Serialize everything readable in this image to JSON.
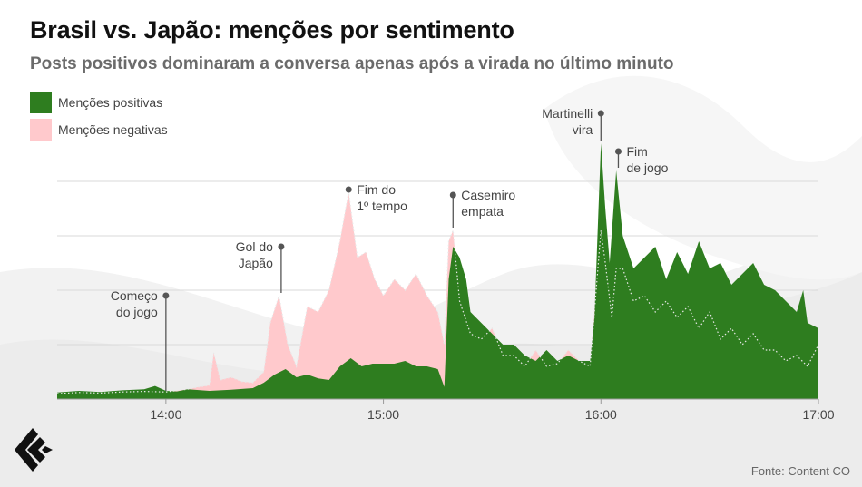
{
  "title": "Brasil vs. Japão: menções por sentimento",
  "subtitle": "Posts positivos dominaram a conversa apenas após a virada no último minuto",
  "source": "Fonte: Content CO",
  "colors": {
    "positive": "#2e7d1f",
    "negative": "#ffc9cc",
    "grid": "#d9d9d9",
    "annotation": "#555555",
    "text": "#444444"
  },
  "icons": {
    "logo": "brand-logo-icon"
  },
  "chart_data": {
    "type": "area",
    "x_unit": "hour",
    "xlim": [
      13.5,
      17.0
    ],
    "ylim": [
      0,
      50
    ],
    "xticks": [
      {
        "x": 14.0,
        "label": "14:00"
      },
      {
        "x": 15.0,
        "label": "15:00"
      },
      {
        "x": 16.0,
        "label": "16:00"
      },
      {
        "x": 17.0,
        "label": "17:00"
      }
    ],
    "yticks": [
      0,
      10,
      20,
      30,
      40
    ],
    "grid": true,
    "legend_position": "top-left",
    "series": [
      {
        "name": "Menções positivas",
        "color": "#2e7d1f",
        "points": [
          [
            13.5,
            1.2
          ],
          [
            13.6,
            1.5
          ],
          [
            13.7,
            1.3
          ],
          [
            13.8,
            1.6
          ],
          [
            13.9,
            1.8
          ],
          [
            13.95,
            2.4
          ],
          [
            14.0,
            1.5
          ],
          [
            14.05,
            1.4
          ],
          [
            14.1,
            1.8
          ],
          [
            14.2,
            1.5
          ],
          [
            14.3,
            1.7
          ],
          [
            14.4,
            2.0
          ],
          [
            14.45,
            3.0
          ],
          [
            14.5,
            4.5
          ],
          [
            14.55,
            5.5
          ],
          [
            14.6,
            4.0
          ],
          [
            14.65,
            4.5
          ],
          [
            14.7,
            3.8
          ],
          [
            14.75,
            3.5
          ],
          [
            14.8,
            6.0
          ],
          [
            14.85,
            7.5
          ],
          [
            14.9,
            6.0
          ],
          [
            14.95,
            6.5
          ],
          [
            15.0,
            6.5
          ],
          [
            15.05,
            6.5
          ],
          [
            15.1,
            7.0
          ],
          [
            15.15,
            6.0
          ],
          [
            15.2,
            6.0
          ],
          [
            15.25,
            5.5
          ],
          [
            15.28,
            2.2
          ],
          [
            15.3,
            22.0
          ],
          [
            15.32,
            28.0
          ],
          [
            15.35,
            26.0
          ],
          [
            15.38,
            22.0
          ],
          [
            15.4,
            16.0
          ],
          [
            15.45,
            14.0
          ],
          [
            15.5,
            12.0
          ],
          [
            15.55,
            10.0
          ],
          [
            15.6,
            10.0
          ],
          [
            15.65,
            8.0
          ],
          [
            15.7,
            7.0
          ],
          [
            15.75,
            9.0
          ],
          [
            15.8,
            7.0
          ],
          [
            15.85,
            8.0
          ],
          [
            15.9,
            7.0
          ],
          [
            15.95,
            7.0
          ],
          [
            15.97,
            15.0
          ],
          [
            16.0,
            47.0
          ],
          [
            16.02,
            35.0
          ],
          [
            16.04,
            25.0
          ],
          [
            16.07,
            42.0
          ],
          [
            16.1,
            30.0
          ],
          [
            16.15,
            24.0
          ],
          [
            16.2,
            26.0
          ],
          [
            16.25,
            28.0
          ],
          [
            16.3,
            22.0
          ],
          [
            16.35,
            27.0
          ],
          [
            16.4,
            23.0
          ],
          [
            16.45,
            29.0
          ],
          [
            16.5,
            24.0
          ],
          [
            16.55,
            25.0
          ],
          [
            16.6,
            21.0
          ],
          [
            16.65,
            23.0
          ],
          [
            16.7,
            25.0
          ],
          [
            16.75,
            21.0
          ],
          [
            16.8,
            20.0
          ],
          [
            16.85,
            18.0
          ],
          [
            16.9,
            16.0
          ],
          [
            16.93,
            20.0
          ],
          [
            16.95,
            14.0
          ],
          [
            17.0,
            13.0
          ]
        ]
      },
      {
        "name": "Menções negativas",
        "color": "#ffc9cc",
        "points": [
          [
            13.5,
            1.0
          ],
          [
            13.6,
            1.2
          ],
          [
            13.7,
            1.1
          ],
          [
            13.8,
            1.3
          ],
          [
            13.9,
            1.4
          ],
          [
            14.0,
            1.3
          ],
          [
            14.1,
            1.8
          ],
          [
            14.15,
            2.2
          ],
          [
            14.2,
            2.5
          ],
          [
            14.22,
            8.5
          ],
          [
            14.25,
            3.5
          ],
          [
            14.3,
            4.0
          ],
          [
            14.35,
            3.2
          ],
          [
            14.4,
            3.0
          ],
          [
            14.45,
            5.0
          ],
          [
            14.48,
            14.0
          ],
          [
            14.52,
            19.0
          ],
          [
            14.56,
            10.0
          ],
          [
            14.6,
            6.0
          ],
          [
            14.65,
            17.0
          ],
          [
            14.7,
            16.0
          ],
          [
            14.75,
            20.0
          ],
          [
            14.8,
            29.0
          ],
          [
            14.84,
            38.0
          ],
          [
            14.88,
            26.0
          ],
          [
            14.92,
            27.0
          ],
          [
            14.96,
            22.0
          ],
          [
            15.0,
            19.0
          ],
          [
            15.05,
            22.0
          ],
          [
            15.1,
            20.0
          ],
          [
            15.15,
            23.0
          ],
          [
            15.2,
            19.0
          ],
          [
            15.25,
            16.0
          ],
          [
            15.28,
            10.0
          ],
          [
            15.3,
            29.0
          ],
          [
            15.32,
            31.0
          ],
          [
            15.35,
            18.0
          ],
          [
            15.4,
            12.0
          ],
          [
            15.45,
            11.0
          ],
          [
            15.5,
            13.0
          ],
          [
            15.55,
            8.0
          ],
          [
            15.6,
            8.0
          ],
          [
            15.65,
            6.0
          ],
          [
            15.7,
            9.0
          ],
          [
            15.75,
            6.0
          ],
          [
            15.8,
            6.5
          ],
          [
            15.85,
            9.0
          ],
          [
            15.9,
            7.0
          ],
          [
            15.95,
            6.0
          ],
          [
            16.0,
            31.0
          ],
          [
            16.02,
            25.0
          ],
          [
            16.05,
            15.0
          ],
          [
            16.07,
            24.0
          ],
          [
            16.1,
            24.0
          ],
          [
            16.15,
            18.0
          ],
          [
            16.2,
            19.0
          ],
          [
            16.25,
            16.0
          ],
          [
            16.3,
            18.0
          ],
          [
            16.35,
            15.0
          ],
          [
            16.4,
            17.0
          ],
          [
            16.45,
            13.0
          ],
          [
            16.5,
            16.0
          ],
          [
            16.55,
            11.0
          ],
          [
            16.6,
            13.0
          ],
          [
            16.65,
            10.0
          ],
          [
            16.7,
            12.0
          ],
          [
            16.75,
            9.0
          ],
          [
            16.8,
            9.0
          ],
          [
            16.85,
            7.0
          ],
          [
            16.9,
            8.0
          ],
          [
            16.95,
            6.0
          ],
          [
            17.0,
            10.0
          ]
        ]
      }
    ],
    "annotations": [
      {
        "x": 14.0,
        "y": 1.5,
        "text": [
          "Começo",
          "do jogo"
        ],
        "label_y": 19.0,
        "label_side": "left"
      },
      {
        "x": 14.53,
        "y": 19.5,
        "text": [
          "Gol do",
          "Japão"
        ],
        "label_y": 28.0,
        "label_side": "left"
      },
      {
        "x": 14.84,
        "y": 38.5,
        "text": [
          "Fim do",
          "1º tempo"
        ],
        "label_y": 37.0,
        "label_side": "right"
      },
      {
        "x": 15.32,
        "y": 31.5,
        "text": [
          "Casemiro",
          "empata"
        ],
        "label_y": 37.5,
        "label_side": "right"
      },
      {
        "x": 16.0,
        "y": 47.5,
        "text": [
          "Martinelli",
          "vira"
        ],
        "label_y": 52.5,
        "label_side": "left"
      },
      {
        "x": 16.08,
        "y": 42.5,
        "text": [
          "Fim",
          "de jogo"
        ],
        "label_y": 45.5,
        "label_side": "right"
      }
    ]
  }
}
